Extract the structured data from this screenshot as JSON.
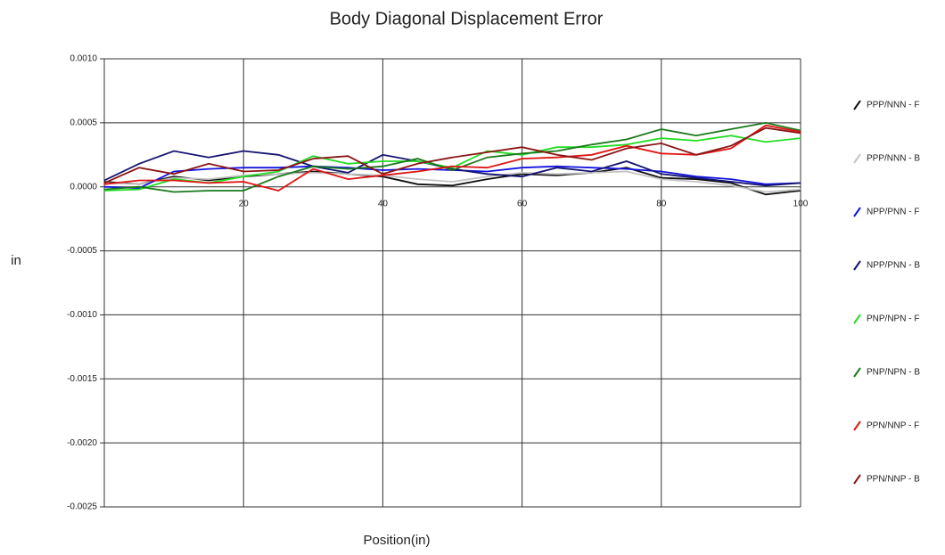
{
  "chart_data": {
    "type": "line",
    "title": "Body Diagonal Displacement Error",
    "xlabel": "Position(in)",
    "ylabel": "in",
    "x": [
      0,
      5,
      10,
      15,
      20,
      25,
      30,
      35,
      40,
      45,
      50,
      55,
      60,
      65,
      70,
      75,
      80,
      85,
      90,
      95,
      100
    ],
    "xlim": [
      0,
      100
    ],
    "xticks": [
      20,
      40,
      60,
      80,
      100
    ],
    "ylim": [
      -0.0025,
      0.001
    ],
    "yticks": [
      {
        "value": 0.001,
        "label": "0.0010"
      },
      {
        "value": 0.0005,
        "label": "0.0005"
      },
      {
        "value": 0,
        "label": "0.0000"
      },
      {
        "value": -0.0005,
        "label": "-0.0005"
      },
      {
        "value": -0.001,
        "label": "-0.0010"
      },
      {
        "value": -0.0015,
        "label": "-0.0015"
      },
      {
        "value": -0.002,
        "label": "-0.0020"
      },
      {
        "value": -0.0025,
        "label": "-0.0025"
      }
    ],
    "grid": true,
    "legend": "right",
    "series": [
      {
        "name": "PPP/NNN - F",
        "color": "#111111",
        "values": [
          4e-05,
          2e-05,
          8e-05,
          5e-05,
          8e-05,
          0.0001,
          0.00012,
          0.0001,
          8e-05,
          2e-05,
          1e-05,
          6e-05,
          0.0001,
          9e-05,
          0.00011,
          0.00015,
          7e-05,
          6e-05,
          3e-05,
          -6e-05,
          -3e-05
        ]
      },
      {
        "name": "PPP/NNN - B",
        "color": "#c4c4c4",
        "values": [
          3e-05,
          2e-05,
          7e-05,
          6e-05,
          9e-05,
          0.0001,
          0.00011,
          0.0001,
          9e-05,
          6e-05,
          4e-05,
          8e-05,
          0.00011,
          0.0001,
          0.00011,
          0.00012,
          6e-05,
          4e-05,
          1e-05,
          -4e-05,
          -2e-05
        ]
      },
      {
        "name": "NPP/PNN - F",
        "color": "#1414e0",
        "values": [
          0,
          -1e-05,
          0.00012,
          0.00014,
          0.00015,
          0.00015,
          0.00016,
          0.00015,
          0.00013,
          0.00014,
          0.00013,
          0.00012,
          0.00015,
          0.00016,
          0.00015,
          0.00014,
          0.00012,
          8e-05,
          6e-05,
          2e-05,
          3e-05
        ]
      },
      {
        "name": "NPP/PNN - B",
        "color": "#141470",
        "values": [
          5e-05,
          0.00018,
          0.00028,
          0.00023,
          0.00028,
          0.00025,
          0.00016,
          0.00011,
          0.00025,
          0.0002,
          0.00014,
          0.0001,
          8e-05,
          0.00015,
          0.00012,
          0.0002,
          0.0001,
          7e-05,
          4e-05,
          1e-05,
          3e-05
        ]
      },
      {
        "name": "PNP/NPN - F",
        "color": "#22dd22",
        "values": [
          -3e-05,
          -2e-05,
          6e-05,
          3e-05,
          8e-05,
          0.00012,
          0.00024,
          0.00018,
          0.0002,
          0.0002,
          0.00015,
          0.00028,
          0.00025,
          0.00031,
          0.00031,
          0.00033,
          0.00038,
          0.00036,
          0.0004,
          0.00035,
          0.00038
        ]
      },
      {
        "name": "PNP/NPN - B",
        "color": "#1a7a1a",
        "values": [
          -2e-05,
          0,
          -4e-05,
          -3e-05,
          -3e-05,
          8e-05,
          0.00016,
          0.00014,
          0.00016,
          0.00022,
          0.00013,
          0.00023,
          0.00026,
          0.00028,
          0.00033,
          0.00037,
          0.00045,
          0.0004,
          0.00045,
          0.0005,
          0.00044
        ]
      },
      {
        "name": "PPN/NNP - F",
        "color": "#e01414",
        "values": [
          2e-05,
          5e-05,
          5e-05,
          3e-05,
          4e-05,
          -3e-05,
          0.00014,
          6e-05,
          9e-05,
          0.00012,
          0.00016,
          0.00015,
          0.00022,
          0.00023,
          0.00025,
          0.00032,
          0.00026,
          0.00025,
          0.0003,
          0.00048,
          0.00043
        ]
      },
      {
        "name": "PPN/NNP - B",
        "color": "#8b1414",
        "values": [
          3e-05,
          0.00015,
          0.0001,
          0.00018,
          0.00012,
          0.00013,
          0.00022,
          0.00024,
          0.0001,
          0.00018,
          0.00023,
          0.00027,
          0.00031,
          0.00025,
          0.00021,
          0.0003,
          0.00034,
          0.00025,
          0.00032,
          0.00046,
          0.00042
        ]
      }
    ]
  }
}
